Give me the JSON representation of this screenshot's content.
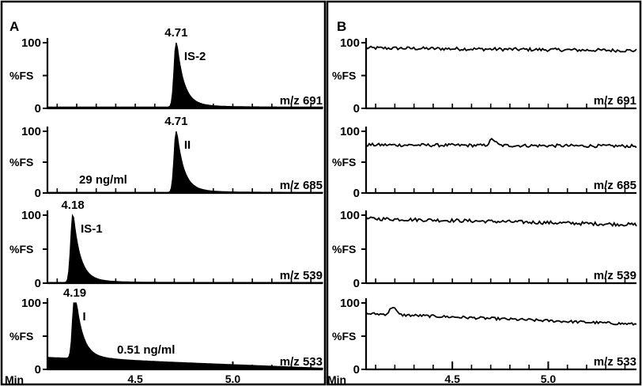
{
  "chart_data": {
    "type": "line",
    "x_label": "Min",
    "x_ticks": [
      "4.5",
      "5.0"
    ],
    "y_label": "%FS",
    "y_ticks": [
      "0",
      "100"
    ],
    "panels": [
      {
        "label": "A",
        "traces": [
          {
            "mz_label": "m/z 691",
            "peak_labels": [
              "4.71",
              "IS-2"
            ],
            "peak_rt": 4.71,
            "peak_height": 100,
            "baseline": 2,
            "noise": 0,
            "filled": true,
            "note": ""
          },
          {
            "mz_label": "m/z 685",
            "peak_labels": [
              "4.71",
              "II"
            ],
            "peak_rt": 4.71,
            "peak_height": 100,
            "baseline": 1,
            "noise": 0,
            "filled": true,
            "note": "29 ng/ml"
          },
          {
            "mz_label": "m/z 539",
            "peak_labels": [
              "4.18",
              "IS-1"
            ],
            "peak_rt": 4.18,
            "peak_height": 100,
            "baseline": 1,
            "noise": 0,
            "filled": true,
            "note": ""
          },
          {
            "mz_label": "m/z 533",
            "peak_labels": [
              "4.19",
              "I"
            ],
            "peak_rt": 4.19,
            "peak_height": 100,
            "baseline": 18,
            "noise": 0,
            "filled": true,
            "note": "0.51 ng/ml"
          }
        ]
      },
      {
        "label": "B",
        "traces": [
          {
            "mz_label": "m/z 691",
            "peak_labels": [],
            "level_start": 92,
            "level_end": 88,
            "noise": 2.5,
            "bump_rt": null,
            "bump_height": 0
          },
          {
            "mz_label": "m/z 685",
            "peak_labels": [],
            "level_start": 78,
            "level_end": 76,
            "noise": 2.5,
            "bump_rt": 4.71,
            "bump_height": 10
          },
          {
            "mz_label": "m/z 539",
            "peak_labels": [],
            "level_start": 95,
            "level_end": 86,
            "noise": 2.5,
            "bump_rt": null,
            "bump_height": 0
          },
          {
            "mz_label": "m/z 533",
            "peak_labels": [],
            "level_start": 84,
            "level_end": 68,
            "noise": 2,
            "bump_rt": 4.19,
            "bump_height": 12
          }
        ]
      }
    ]
  }
}
